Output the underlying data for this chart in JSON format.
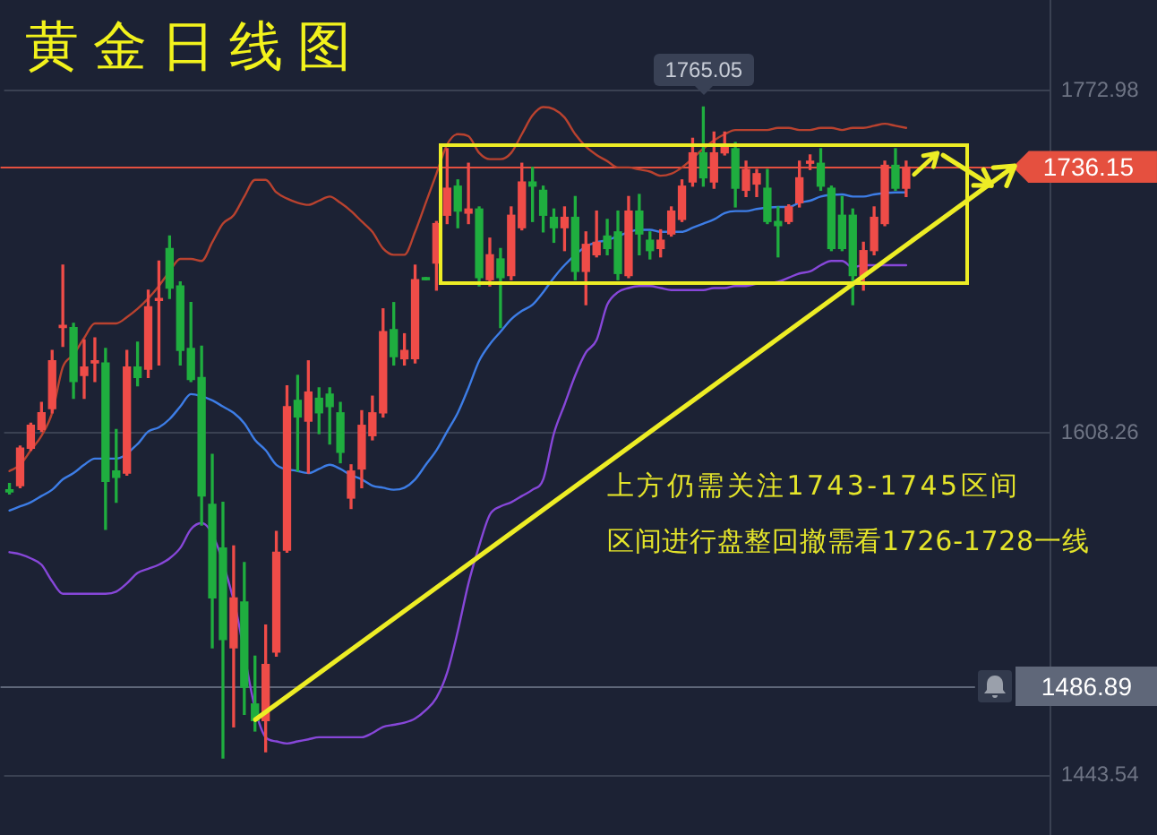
{
  "chart_data": {
    "type": "candlestick",
    "title": "黄金日线图",
    "annotations": [
      "上方仍需关注1743-1745区间",
      "区间进行盘整回撤需看1726-1728一线",
      {
        "text": "1765.05",
        "y": 1765.05
      }
    ],
    "categories": [
      null,
      null,
      null,
      null,
      null,
      null,
      null,
      null,
      null,
      null,
      null,
      null,
      null,
      null,
      null,
      null,
      null,
      null,
      null,
      null,
      null,
      null,
      null,
      null,
      null,
      null,
      null,
      null,
      null,
      null,
      null,
      null,
      null,
      null,
      null,
      null,
      null,
      null,
      null,
      null,
      null,
      null,
      null,
      null,
      null,
      null,
      null,
      null,
      null,
      null,
      null,
      null,
      null,
      null,
      null,
      null,
      null,
      null,
      null,
      null,
      null,
      null,
      null,
      null,
      null,
      null,
      null,
      null,
      null,
      null,
      null,
      null,
      null,
      null,
      null,
      null,
      null,
      null,
      null,
      null,
      null,
      null,
      null,
      null,
      null,
      null,
      null,
      null,
      null,
      null,
      null,
      null,
      null,
      null,
      null,
      null,
      null,
      null
    ],
    "ohlc": [
      [
        1581,
        1584,
        1579,
        1580
      ],
      [
        1583,
        1602,
        1582,
        1601
      ],
      [
        1601,
        1613,
        1600,
        1612
      ],
      [
        1610,
        1623,
        1609,
        1618
      ],
      [
        1620,
        1648,
        1618,
        1643
      ],
      [
        1659,
        1689,
        1650,
        1660
      ],
      [
        1659,
        1661,
        1625,
        1633
      ],
      [
        1636,
        1653,
        1625,
        1640
      ],
      [
        1642,
        1654,
        1633,
        1643
      ],
      [
        1642,
        1649,
        1562,
        1585
      ],
      [
        1590,
        1610,
        1575,
        1587
      ],
      [
        1589,
        1648,
        1588,
        1640
      ],
      [
        1640,
        1652,
        1631,
        1635
      ],
      [
        1639,
        1677,
        1635,
        1669
      ],
      [
        1672,
        1691,
        1641,
        1673
      ],
      [
        1697,
        1703,
        1673,
        1678
      ],
      [
        1679,
        1681,
        1641,
        1648
      ],
      [
        1649,
        1671,
        1633,
        1634
      ],
      [
        1635,
        1650,
        1564,
        1578
      ],
      [
        1574,
        1598,
        1505,
        1529
      ],
      [
        1553,
        1575,
        1452,
        1509
      ],
      [
        1505,
        1554,
        1467,
        1529
      ],
      [
        1527,
        1546,
        1473,
        1486
      ],
      [
        1478,
        1501,
        1465,
        1470
      ],
      [
        1470,
        1516,
        1455,
        1497
      ],
      [
        1503,
        1561,
        1501,
        1551
      ],
      [
        1552,
        1631,
        1551,
        1621
      ],
      [
        1624,
        1636,
        1590,
        1616
      ],
      [
        1614,
        1643,
        1589,
        1628
      ],
      [
        1625,
        1630,
        1608,
        1618
      ],
      [
        1627,
        1630,
        1603,
        1621
      ],
      [
        1618,
        1623,
        1594,
        1599
      ],
      [
        1577,
        1593,
        1572,
        1590
      ],
      [
        1591,
        1619,
        1582,
        1612
      ],
      [
        1607,
        1626,
        1605,
        1618
      ],
      [
        1618,
        1668,
        1616,
        1657
      ],
      [
        1658,
        1671,
        1641,
        1645
      ],
      [
        1644,
        1656,
        1641,
        1648
      ],
      [
        1644,
        1689,
        1642,
        1682
      ],
      [
        1683,
        1683,
        1682,
        1682
      ],
      [
        1690,
        1710,
        1677,
        1709
      ],
      [
        1713,
        1745,
        1709,
        1726
      ],
      [
        1727,
        1730,
        1707,
        1715
      ],
      [
        1714,
        1738,
        1709,
        1716
      ],
      [
        1716,
        1717,
        1679,
        1683
      ],
      [
        1682,
        1702,
        1679,
        1694
      ],
      [
        1692,
        1697,
        1659,
        1683
      ],
      [
        1684,
        1717,
        1682,
        1713
      ],
      [
        1707,
        1738,
        1706,
        1729
      ],
      [
        1729,
        1736,
        1710,
        1727
      ],
      [
        1725,
        1727,
        1705,
        1713
      ],
      [
        1712,
        1716,
        1700,
        1707
      ],
      [
        1707,
        1717,
        1696,
        1712
      ],
      [
        1712,
        1722,
        1682,
        1686
      ],
      [
        1686,
        1705,
        1670,
        1699
      ],
      [
        1694,
        1715,
        1693,
        1700
      ],
      [
        1703,
        1711,
        1694,
        1697
      ],
      [
        1705,
        1715,
        1682,
        1685
      ],
      [
        1684,
        1722,
        1683,
        1715
      ],
      [
        1715,
        1723,
        1694,
        1704
      ],
      [
        1701,
        1705,
        1692,
        1696
      ],
      [
        1697,
        1706,
        1693,
        1701
      ],
      [
        1704,
        1717,
        1703,
        1715
      ],
      [
        1711,
        1730,
        1710,
        1727
      ],
      [
        1729,
        1750,
        1727,
        1743
      ],
      [
        1743,
        1765.05,
        1727,
        1731
      ],
      [
        1729,
        1753,
        1726,
        1743
      ],
      [
        1743,
        1753,
        1742,
        1746
      ],
      [
        1745,
        1748,
        1717,
        1726
      ],
      [
        1725,
        1739,
        1722,
        1735
      ],
      [
        1728,
        1735,
        1722,
        1733
      ],
      [
        1726,
        1735,
        1709,
        1710
      ],
      [
        1710,
        1717,
        1693,
        1708
      ],
      [
        1710,
        1718,
        1709,
        1717
      ],
      [
        1719,
        1739,
        1717,
        1731
      ],
      [
        1738,
        1742,
        1735,
        1739
      ],
      [
        1738,
        1745,
        1725,
        1727
      ],
      [
        1726,
        1727,
        1696,
        1697
      ],
      [
        1713,
        1722,
        1696,
        1697
      ],
      [
        1713,
        1716,
        1670,
        1684
      ],
      [
        1684,
        1700,
        1677,
        1696
      ],
      [
        1696,
        1717,
        1694,
        1712
      ],
      [
        1709,
        1739,
        1708,
        1737
      ],
      [
        1737,
        1745,
        1725,
        1726
      ],
      [
        1726,
        1739,
        1722,
        1736.15
      ],
      null,
      null,
      null,
      null,
      null,
      null,
      null,
      null,
      null,
      null,
      null,
      null,
      null
    ],
    "colors": [
      "#1fae3f",
      "#ef4c48",
      "#ef4c48",
      "#ef4c48",
      "#ef4c48",
      "#ef4c48",
      "#1fae3f",
      "#ef4c48",
      "#ef4c48",
      "#1fae3f",
      "#1fae3f",
      "#ef4c48",
      "#1fae3f",
      "#ef4c48",
      "#ef4c48",
      "#1fae3f",
      "#1fae3f",
      "#1fae3f",
      "#1fae3f",
      "#1fae3f",
      "#1fae3f",
      "#ef4c48",
      "#1fae3f",
      "#1fae3f",
      "#ef4c48",
      "#ef4c48",
      "#ef4c48",
      "#1fae3f",
      "#ef4c48",
      "#1fae3f",
      "#1fae3f",
      "#1fae3f",
      "#ef4c48",
      "#ef4c48",
      "#ef4c48",
      "#ef4c48",
      "#1fae3f",
      "#ef4c48",
      "#ef4c48",
      "#1fae3f",
      "#ef4c48",
      "#ef4c48",
      "#1fae3f",
      "#ef4c48",
      "#1fae3f",
      "#ef4c48",
      "#1fae3f",
      "#ef4c48",
      "#ef4c48",
      "#1fae3f",
      "#1fae3f",
      "#1fae3f",
      "#ef4c48",
      "#1fae3f",
      "#ef4c48",
      "#ef4c48",
      "#1fae3f",
      "#1fae3f",
      "#ef4c48",
      "#1fae3f",
      "#1fae3f",
      "#ef4c48",
      "#ef4c48",
      "#ef4c48",
      "#ef4c48",
      "#1fae3f",
      "#ef4c48",
      "#ef4c48",
      "#1fae3f",
      "#ef4c48",
      "#ef4c48",
      "#1fae3f",
      "#1fae3f",
      "#ef4c48",
      "#ef4c48",
      "#ef4c48",
      "#1fae3f",
      "#1fae3f",
      "#1fae3f",
      "#1fae3f",
      "#ef4c48",
      "#ef4c48",
      "#ef4c48",
      "#1fae3f",
      "#ef4c48",
      null,
      null,
      null,
      null,
      null,
      null,
      null,
      null,
      null,
      null,
      null,
      null,
      null
    ],
    "series": [
      {
        "type": "line",
        "color": "#b9422f",
        "values": [
          1590,
          1593,
          1600,
          1607,
          1618,
          1640,
          1646,
          1654,
          1661,
          1661,
          1661,
          1664,
          1668,
          1673,
          1679,
          1686,
          1692,
          1692,
          1691,
          1700,
          1709,
          1713,
          1722,
          1730,
          1730,
          1724,
          1721,
          1719,
          1718,
          1720,
          1722,
          1719,
          1715,
          1710,
          1705,
          1697,
          1694,
          1694,
          1705,
          1719,
          1733,
          1747,
          1752,
          1751,
          1743,
          1740,
          1740,
          1743,
          1752,
          1761,
          1765,
          1764,
          1760,
          1752,
          1746,
          1742,
          1739,
          1736,
          1736,
          1735,
          1734,
          1732,
          1733,
          1736,
          null,
          1745,
          1749,
          1752,
          1754,
          1754,
          1754,
          1754,
          1755,
          1755,
          1754,
          1754,
          1755,
          1755,
          1754,
          1755,
          1755,
          1756,
          1757,
          1756,
          1755,
          null,
          null,
          null,
          null,
          null,
          null,
          null,
          null,
          null,
          null,
          null,
          null,
          null
        ]
      },
      {
        "type": "line",
        "color": "#3d7de6",
        "values": [
          1571,
          1573,
          1575,
          1578,
          1581,
          1586,
          1589,
          1593,
          1596,
          null,
          1596,
          null,
          1603,
          1609,
          1611,
          1615,
          1621,
          1627,
          null,
          1624,
          1621,
          1618,
          1613,
          1605,
          1600,
          1593,
          null,
          1590,
          1589,
          1591,
          1593,
          1591,
          1588,
          1586,
          1583,
          1582,
          1581,
          1582,
          1586,
          1593,
          1600,
          1609,
          1618,
          1630,
          1643,
          1651,
          1657,
          1663,
          1667,
          1670,
          1676,
          1683,
          1689,
          null,
          1698,
          1700,
          1701,
          1703,
          null,
          1706,
          1706,
          1705,
          1705,
          1705,
          1707,
          1709,
          1711,
          1714,
          1715,
          1715,
          1716,
          null,
          1717,
          1717,
          1719,
          1720,
          1722,
          null,
          1723,
          1722,
          1722,
          1723,
          null,
          1724,
          1724,
          null,
          null,
          null,
          null,
          null,
          null,
          null,
          null,
          null,
          null,
          null,
          null,
          null
        ]
      },
      {
        "type": "line",
        "color": "#8747d9",
        "values": [
          1551,
          1550,
          1548,
          1545,
          1537,
          1531,
          1531,
          1531,
          1531,
          1531,
          1532,
          1536,
          1541,
          1543,
          1545,
          1548,
          1553,
          1562,
          1565,
          null,
          null,
          1528,
          null,
          1476,
          1462,
          1460,
          1459,
          1460,
          1461,
          1462,
          1462,
          1462,
          1462,
          1462,
          1464,
          1467,
          1468,
          1469,
          1471,
          1475,
          1481,
          1493,
          1513,
          1536,
          1554,
          1569,
          1573,
          1575,
          1578,
          1581,
          1586,
          1608,
          1622,
          1636,
          1647,
          1653,
          1670,
          1676,
          1678,
          1679,
          1679,
          1678,
          1677,
          1677,
          1677,
          1677,
          1678,
          1678,
          1679,
          1679,
          1680,
          null,
          1681,
          1683,
          1685,
          1686,
          1689,
          1691,
          1691,
          1688,
          1689,
          1689,
          1689,
          1689,
          1689,
          null,
          null,
          null,
          null,
          null,
          null,
          null,
          null,
          null,
          null,
          null,
          null,
          null
        ]
      }
    ],
    "ylim": [
      1415,
      1816.5
    ],
    "yticks": [
      1772.98,
      1608.26,
      1443.54
    ],
    "ref_lines": [
      {
        "axis": "y",
        "value": 1736.15,
        "label": "1736.15",
        "color": "#e5503f"
      },
      {
        "axis": "y",
        "value": 1486.89,
        "label": "1486.89",
        "color": "#5f6779"
      }
    ],
    "grid": "y",
    "tick_labels": "y"
  }
}
